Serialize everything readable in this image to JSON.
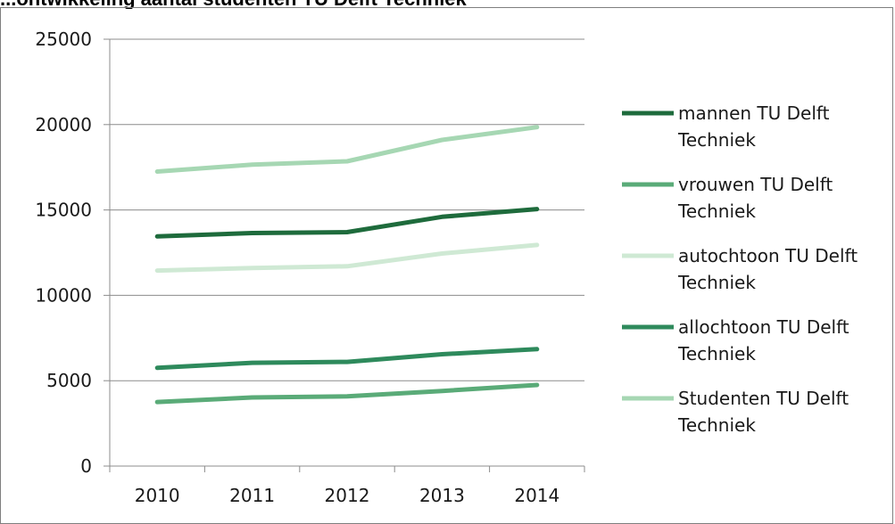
{
  "chart_data": {
    "type": "line",
    "title": "",
    "title_visible_fragment": "...ontwikkeling aantal studenten TU Delft Techniek",
    "xlabel": "",
    "ylabel": "",
    "categories": [
      "2010",
      "2011",
      "2012",
      "2013",
      "2014"
    ],
    "ylim": [
      0,
      25000
    ],
    "yticks": [
      "0",
      "5000",
      "10000",
      "15000",
      "20000",
      "25000"
    ],
    "grid": true,
    "legend_position": "right",
    "series": [
      {
        "name": "mannen TU Delft Techniek",
        "color": "#1e6b3c",
        "values": [
          13450,
          13650,
          13700,
          14600,
          15050
        ]
      },
      {
        "name": "vrouwen TU Delft Techniek",
        "color": "#5aab78",
        "values": [
          3750,
          4020,
          4080,
          4400,
          4750
        ]
      },
      {
        "name": "autochtoon TU Delft Techniek",
        "color": "#cfe9d4",
        "values": [
          11450,
          11600,
          11700,
          12450,
          12950
        ]
      },
      {
        "name": "allochtoon TU Delft Techniek",
        "color": "#2e8a5c",
        "values": [
          5750,
          6050,
          6100,
          6550,
          6850
        ]
      },
      {
        "name": "Studenten TU Delft Techniek",
        "color": "#a6d7b3",
        "values": [
          17250,
          17650,
          17850,
          19100,
          19850
        ]
      }
    ]
  }
}
